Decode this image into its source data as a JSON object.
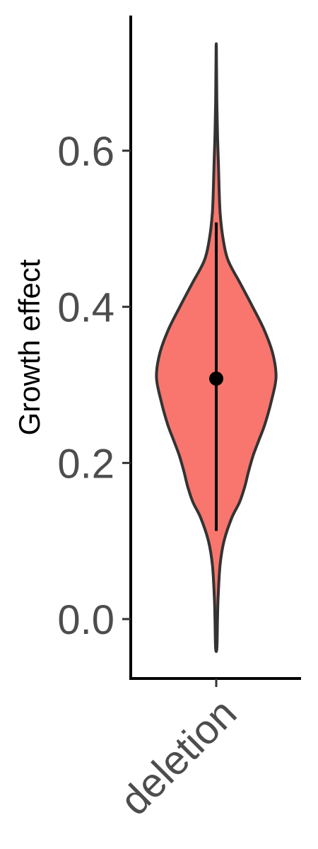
{
  "chart_data": {
    "type": "violin",
    "categories": [
      "deletion"
    ],
    "ylabel": "Growth effect",
    "xlabel": "",
    "ylim": [
      -0.075,
      0.775
    ],
    "yticks": [
      0.0,
      0.2,
      0.4,
      0.6
    ],
    "ytick_labels": [
      "0.0",
      "0.2",
      "0.4",
      "0.6"
    ],
    "grid": false,
    "fill_color": "#f8766d",
    "outline_color": "#333333",
    "point_color": "#000000",
    "series": [
      {
        "category": "deletion",
        "min": -0.037,
        "max": 0.733,
        "mean": 0.308,
        "range_low": 0.113,
        "range_high": 0.508,
        "density_profile": [
          [
            -0.037,
            0.01
          ],
          [
            0.0,
            0.02
          ],
          [
            0.03,
            0.03
          ],
          [
            0.07,
            0.06
          ],
          [
            0.1,
            0.12
          ],
          [
            0.13,
            0.24
          ],
          [
            0.15,
            0.36
          ],
          [
            0.17,
            0.44
          ],
          [
            0.19,
            0.5
          ],
          [
            0.21,
            0.57
          ],
          [
            0.23,
            0.66
          ],
          [
            0.25,
            0.75
          ],
          [
            0.28,
            0.85
          ],
          [
            0.31,
            0.92
          ],
          [
            0.34,
            0.87
          ],
          [
            0.37,
            0.74
          ],
          [
            0.4,
            0.56
          ],
          [
            0.43,
            0.37
          ],
          [
            0.46,
            0.18
          ],
          [
            0.49,
            0.1
          ],
          [
            0.52,
            0.06
          ],
          [
            0.55,
            0.045
          ],
          [
            0.58,
            0.035
          ],
          [
            0.62,
            0.02
          ],
          [
            0.66,
            0.01
          ],
          [
            0.7,
            0.005
          ],
          [
            0.733,
            0.002
          ]
        ]
      }
    ]
  }
}
